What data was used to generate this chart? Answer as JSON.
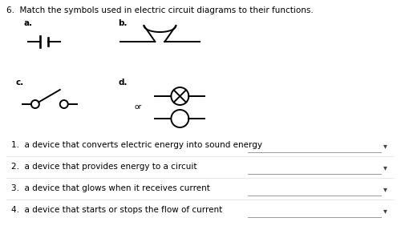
{
  "title": "6.  Match the symbols used in electric circuit diagrams to their functions.",
  "label_a": "a.",
  "label_b": "b.",
  "label_c": "c.",
  "label_d": "d.",
  "or_text": "or",
  "items": [
    "1.  a device that converts electric energy into sound energy",
    "2.  a device that provides energy to a circuit",
    "3.  a device that glows when it receives current",
    "4.  a device that starts or stops the flow of current"
  ],
  "bg_color": "#ffffff",
  "text_color": "#000000",
  "line_color": "#000000",
  "font_size_title": 7.5,
  "font_size_label": 7.5,
  "font_size_item": 7.5,
  "font_size_or": 6.5
}
